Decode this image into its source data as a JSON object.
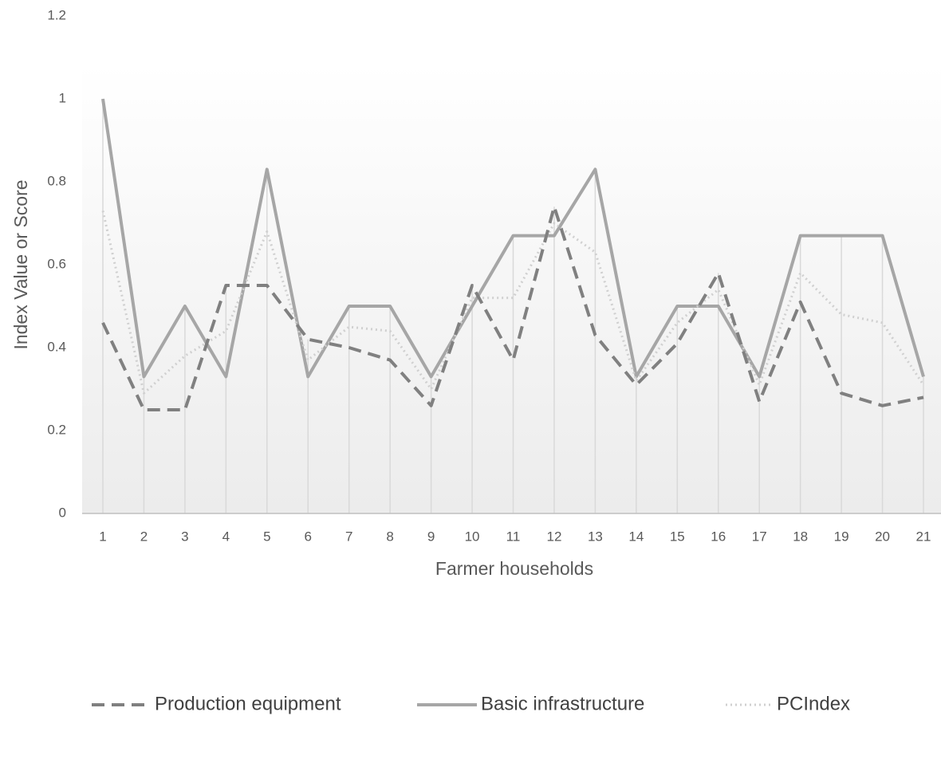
{
  "chart_data": {
    "type": "line",
    "xlabel": "Farmer households",
    "ylabel": "Index Value or Score",
    "categories": [
      "1",
      "2",
      "3",
      "4",
      "5",
      "6",
      "7",
      "8",
      "9",
      "10",
      "11",
      "12",
      "13",
      "14",
      "15",
      "16",
      "17",
      "18",
      "19",
      "20",
      "21"
    ],
    "series": [
      {
        "name": "Production equipment",
        "color": "#808080",
        "style": "dashed",
        "values": [
          0.46,
          0.25,
          0.25,
          0.55,
          0.55,
          0.42,
          0.4,
          0.37,
          0.26,
          0.55,
          0.37,
          0.74,
          0.43,
          0.31,
          0.41,
          0.58,
          0.27,
          0.51,
          0.29,
          0.26,
          0.28
        ]
      },
      {
        "name": "Basic infrastructure",
        "color": "#a6a6a6",
        "style": "solid",
        "values": [
          1.0,
          0.33,
          0.5,
          0.33,
          0.83,
          0.33,
          0.5,
          0.5,
          0.33,
          0.5,
          0.67,
          0.67,
          0.83,
          0.33,
          0.5,
          0.5,
          0.33,
          0.67,
          0.67,
          0.67,
          0.33
        ]
      },
      {
        "name": "PCIndex",
        "color": "#d0d0d0",
        "style": "dotted",
        "values": [
          0.73,
          0.29,
          0.38,
          0.44,
          0.68,
          0.37,
          0.45,
          0.44,
          0.3,
          0.52,
          0.52,
          0.7,
          0.63,
          0.32,
          0.46,
          0.54,
          0.31,
          0.58,
          0.48,
          0.46,
          0.31
        ]
      }
    ],
    "ylim": [
      0,
      1.2
    ],
    "yticks": [
      0,
      0.2,
      0.4,
      0.6,
      0.8,
      1,
      1.2
    ],
    "grid": false,
    "legend": "bottom"
  }
}
